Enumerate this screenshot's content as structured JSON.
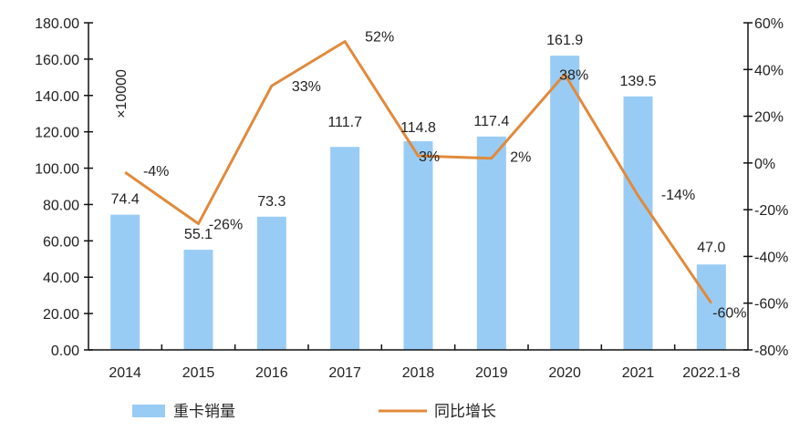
{
  "chart_data": {
    "type": "bar+line",
    "categories": [
      "2014",
      "2015",
      "2016",
      "2017",
      "2018",
      "2019",
      "2020",
      "2021",
      "2022.1-8"
    ],
    "series": [
      {
        "name": "重卡销量",
        "type": "bar",
        "axis": "left",
        "values": [
          74.4,
          55.1,
          73.3,
          111.7,
          114.8,
          117.4,
          161.9,
          139.5,
          47.0
        ],
        "labels": [
          "74.4",
          "55.1",
          "73.3",
          "111.7",
          "114.8",
          "117.4",
          "161.9",
          "139.5",
          "47.0"
        ],
        "color": "#99CCF5"
      },
      {
        "name": "同比增长",
        "type": "line",
        "axis": "right",
        "values": [
          -4,
          -26,
          33,
          52,
          3,
          2,
          38,
          -14,
          -60
        ],
        "labels": [
          "-4%",
          "-26%",
          "33%",
          "52%",
          "3%",
          "2%",
          "38%",
          "-14%",
          "-60%"
        ],
        "color": "#E08A3C"
      }
    ],
    "left_axis": {
      "label": "×10000",
      "ylim": [
        0,
        180
      ],
      "ticks": [
        "0.00",
        "20.00",
        "40.00",
        "60.00",
        "80.00",
        "100.00",
        "120.00",
        "140.00",
        "160.00",
        "180.00"
      ]
    },
    "right_axis": {
      "ylim": [
        -80,
        60
      ],
      "ticks": [
        "-80%",
        "-60%",
        "-40%",
        "-20%",
        "0%",
        "20%",
        "40%",
        "60%"
      ]
    },
    "grid": false,
    "legend": "bottom"
  }
}
